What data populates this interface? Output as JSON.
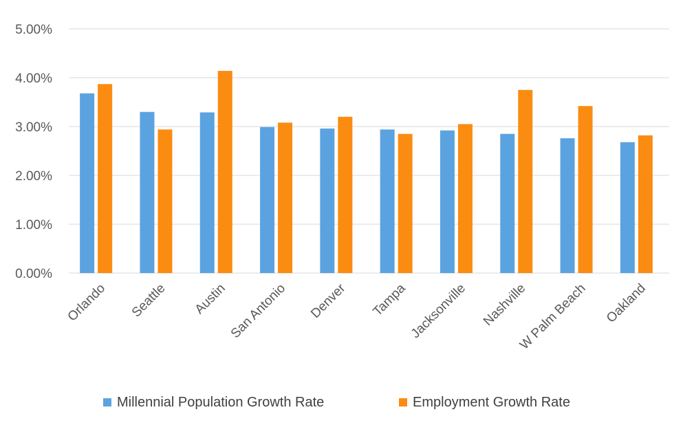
{
  "chart_data": {
    "type": "bar",
    "categories": [
      "Orlando",
      "Seattle",
      "Austin",
      "San Antonio",
      "Denver",
      "Tampa",
      "Jacksonville",
      "Nashville",
      "W Palm Beach",
      "Oakland"
    ],
    "series": [
      {
        "name": "Millennial Population Growth Rate",
        "color": "#5ba3e0",
        "values": [
          3.68,
          3.3,
          3.29,
          2.99,
          2.96,
          2.94,
          2.92,
          2.85,
          2.76,
          2.68
        ]
      },
      {
        "name": "Employment Growth Rate",
        "color": "#fb8c12",
        "values": [
          3.87,
          2.94,
          4.14,
          3.08,
          3.2,
          2.85,
          3.05,
          3.75,
          3.42,
          2.82
        ]
      }
    ],
    "ylim": [
      0,
      5
    ],
    "yticks": [
      0,
      1,
      2,
      3,
      4,
      5
    ],
    "ytick_labels": [
      "0.00%",
      "1.00%",
      "2.00%",
      "3.00%",
      "4.00%",
      "5.00%"
    ],
    "grid": true,
    "legend_position": "bottom"
  }
}
